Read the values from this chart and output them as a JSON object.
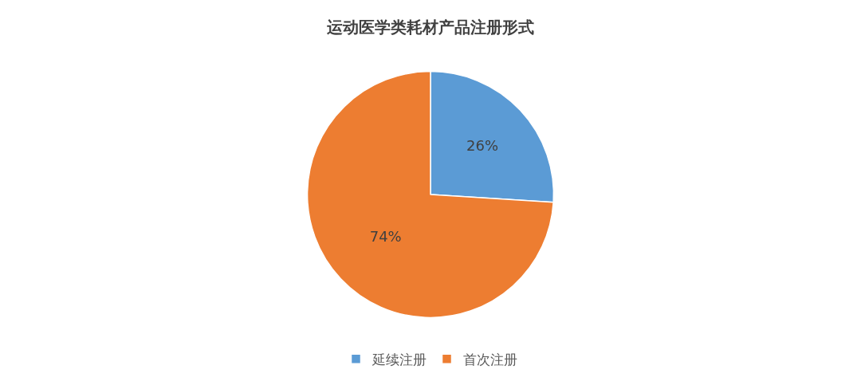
{
  "chart_data": {
    "type": "pie",
    "title": "运动医学类耗材产品注册形式",
    "categories": [
      "延续注册",
      "首次注册"
    ],
    "values": [
      26,
      74
    ],
    "colors": [
      "#5b9bd5",
      "#ed7d31"
    ],
    "value_labels": [
      "26%",
      "74%"
    ],
    "legend": "bottom"
  }
}
